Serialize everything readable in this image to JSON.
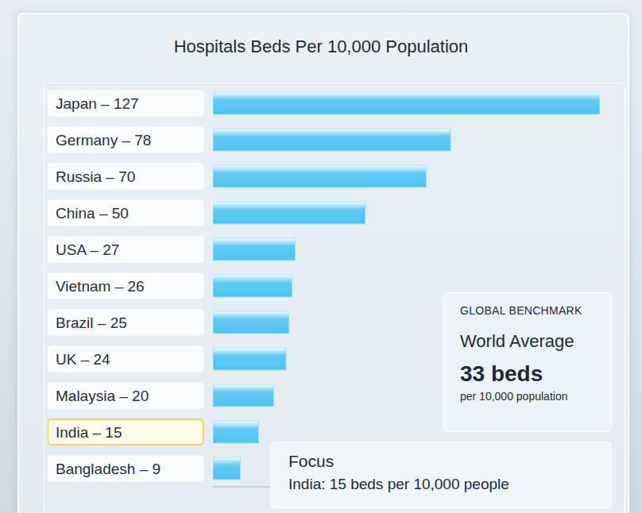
{
  "chart_data": {
    "type": "bar",
    "orientation": "horizontal",
    "title": "Hospitals Beds Per 10,000 Population",
    "categories": [
      "Japan – 127",
      "Germany – 78",
      "Russia – 70",
      "China – 50",
      "USA – 27",
      "Vietnam – 26",
      "Brazil – 25",
      "UK – 24",
      "Malaysia – 20",
      "India – 15",
      "Bangladesh – 9"
    ],
    "values": [
      127,
      78,
      70,
      50,
      27,
      26,
      25,
      24,
      20,
      15,
      9
    ],
    "color": "#4cc3f0",
    "xlim": [
      0,
      127
    ],
    "xticks": [],
    "tick_labels": "y",
    "grid": false,
    "annotations": {
      "benchmark": {
        "heading": "GLOBAL BENCHMARK",
        "label": "World Average",
        "value_text": "33 beds",
        "unit": "per 10,000 population"
      },
      "focus": {
        "heading": "Focus",
        "text": "India: 15 beds per 10,000 people"
      }
    }
  }
}
